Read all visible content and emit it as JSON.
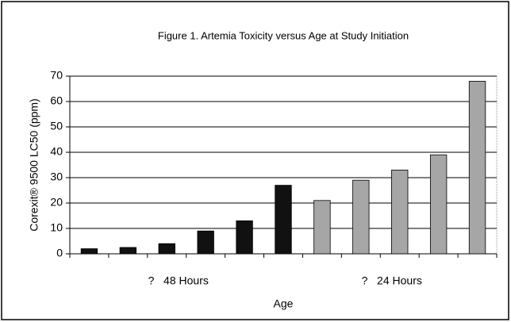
{
  "chart_data": {
    "type": "bar",
    "title": "Figure 1.  Artemia Toxicity versus Age at Study Initiation",
    "x_label": "Age",
    "y_label": "Corexit® 9500 LC50 (ppm)",
    "groups": [
      {
        "label": "?   48 Hours",
        "color": "#111111",
        "values": [
          2,
          2.5,
          4,
          9,
          13,
          27
        ]
      },
      {
        "label": "?   24 Hours",
        "color": "#a6a6a6",
        "values": [
          21,
          29,
          33,
          39,
          68
        ]
      }
    ],
    "ylim": [
      0,
      70
    ],
    "yticks": [
      0,
      10,
      20,
      30,
      40,
      50,
      60,
      70
    ],
    "grid": true
  }
}
